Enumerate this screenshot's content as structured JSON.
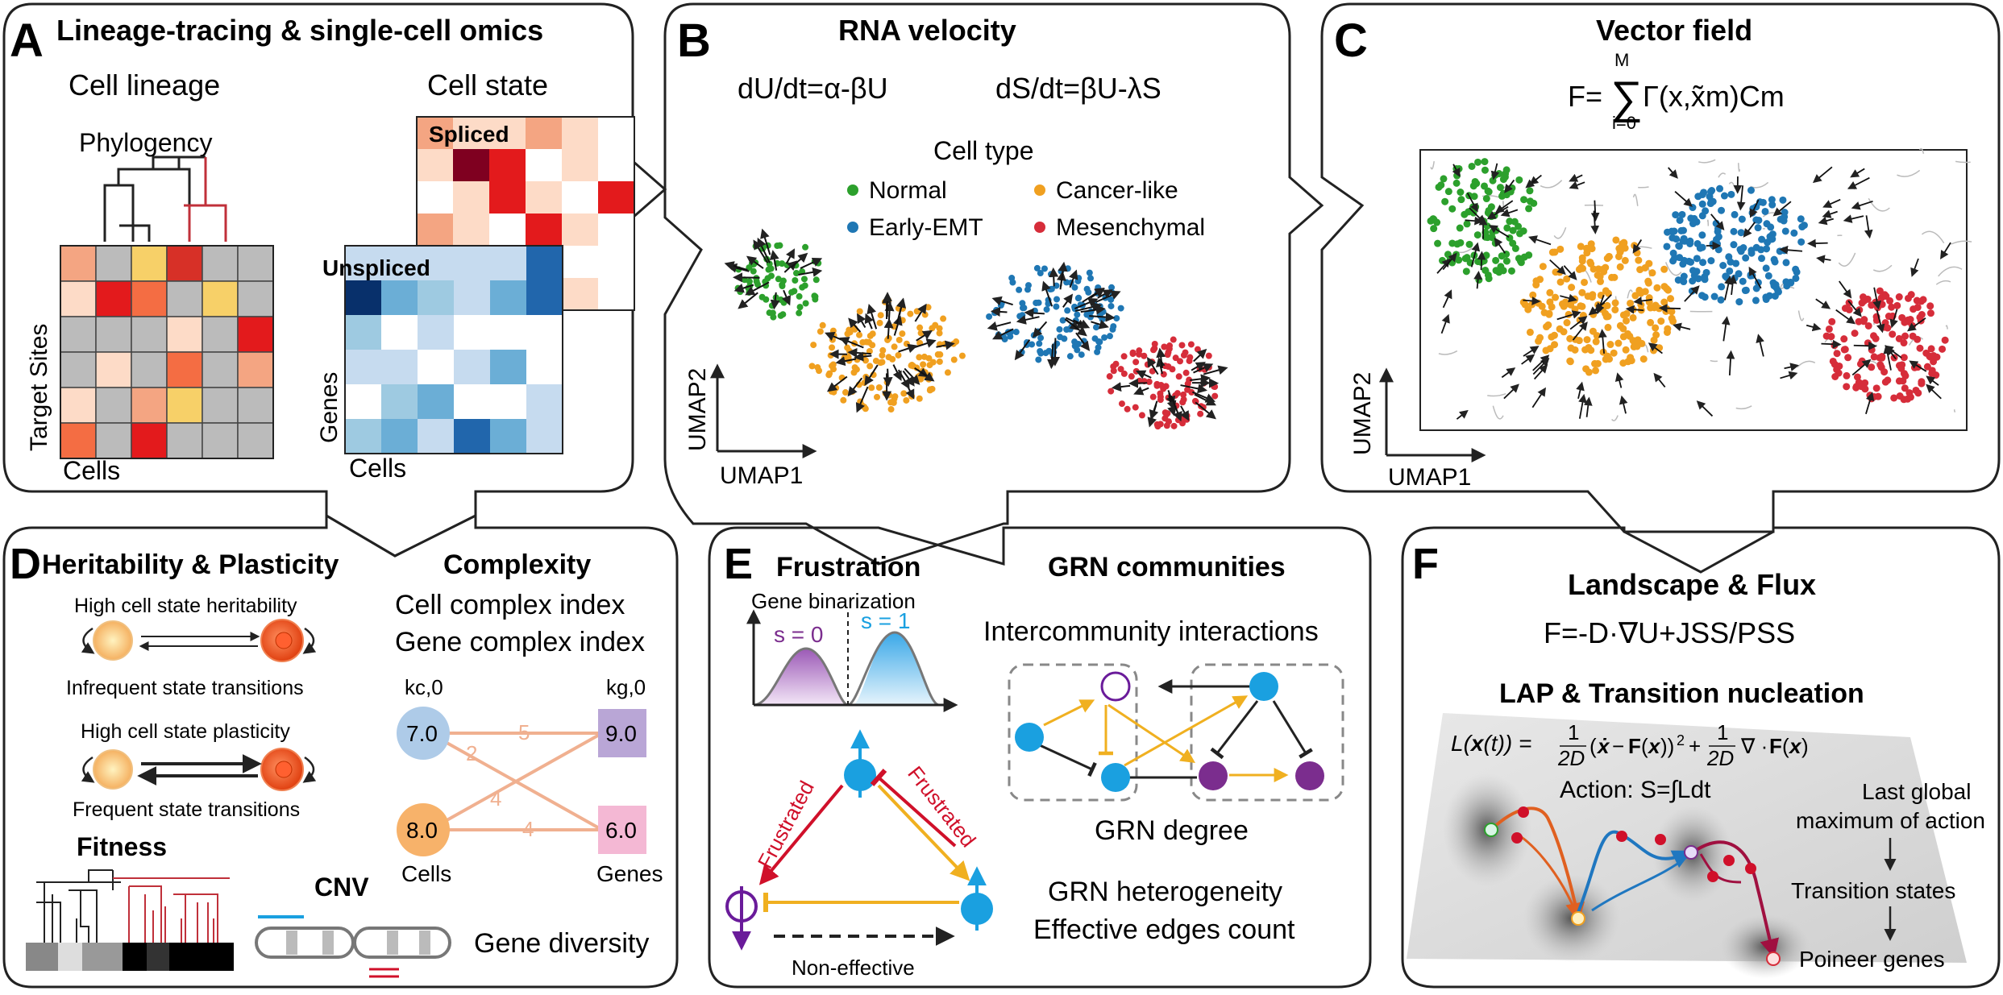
{
  "panelA": {
    "letter": "A",
    "title": "Lineage-tracing & single-cell omics",
    "cell_lineage": "Cell lineage",
    "cell_state": "Cell state",
    "phylogeny": "Phylogency",
    "spliced": "Spliced",
    "unspliced": "Unspliced",
    "target_sites": "Target Sites",
    "cells": "Cells",
    "genes": "Genes",
    "cells2": "Cells"
  },
  "panelB": {
    "letter": "B",
    "title": "RNA velocity",
    "eq1": "dU/dt=α-βU",
    "eq2": "dS/dt=βU-λS",
    "legend_title": "Cell type",
    "legend": [
      {
        "label": "Normal",
        "color": "#2ca02c"
      },
      {
        "label": "Cancer-like",
        "color": "#f0a020"
      },
      {
        "label": "Early-EMT",
        "color": "#1f77b4"
      },
      {
        "label": "Mesenchymal",
        "color": "#d62d3a"
      }
    ],
    "axis_x": "UMAP1",
    "axis_y": "UMAP2"
  },
  "panelC": {
    "letter": "C",
    "title": "Vector field",
    "eq_lhs": "F=",
    "eq_sum_top": "M",
    "eq_sum_bottom": "i=0",
    "eq_rhs": "Γ(x,x̃m)Cm",
    "axis_x": "UMAP1",
    "axis_y": "UMAP2"
  },
  "panelD": {
    "letter": "D",
    "title": "Heritability & Plasticity",
    "high_heritability": "High cell state heritability",
    "infrequent": "Infrequent state transitions",
    "high_plasticity": "High cell state plasticity",
    "frequent": "Frequent state transitions",
    "fitness": "Fitness",
    "cnv": "CNV",
    "complexity": "Complexity",
    "cell_complex": "Cell complex index",
    "gene_complex": "Gene complex index",
    "kc": "kc,0",
    "kg": "kg,0",
    "node_cell1": "7.0",
    "node_cell2": "8.0",
    "node_gene1": "9.0",
    "node_gene2": "6.0",
    "edge_5": "5",
    "edge_2": "2",
    "edge_4a": "4",
    "edge_4b": "4",
    "cells_label": "Cells",
    "genes_label": "Genes",
    "gene_diversity": "Gene diversity"
  },
  "panelE": {
    "letter": "E",
    "frustration": "Frustration",
    "gene_binarization": "Gene binarization",
    "s0": "s = 0",
    "s1": "s = 1",
    "frustrated_left": "Frustrated",
    "frustrated_right": "Frustrated",
    "non_effective": "Non-effective",
    "grn_communities": "GRN communities",
    "intercommunity": "Intercommunity interactions",
    "grn_degree": "GRN degree",
    "grn_heterogeneity": "GRN heterogeneity",
    "effective_edges": "Effective edges count"
  },
  "panelF": {
    "letter": "F",
    "title": "Landscape & Flux",
    "eq": "F=-D·∇U+JSS/PSS",
    "lap": "LAP & Transition nucleation",
    "lagrangian": "L(x(t)) = (1/2D)(ẋ − F(x))² + (1/2D)∇·F(x)",
    "action": "Action: S=∫Ldt",
    "last_global": "Last global",
    "maximum": "maximum of action",
    "transition_states": "Transition states",
    "pioneer": "Poineer genes"
  }
}
